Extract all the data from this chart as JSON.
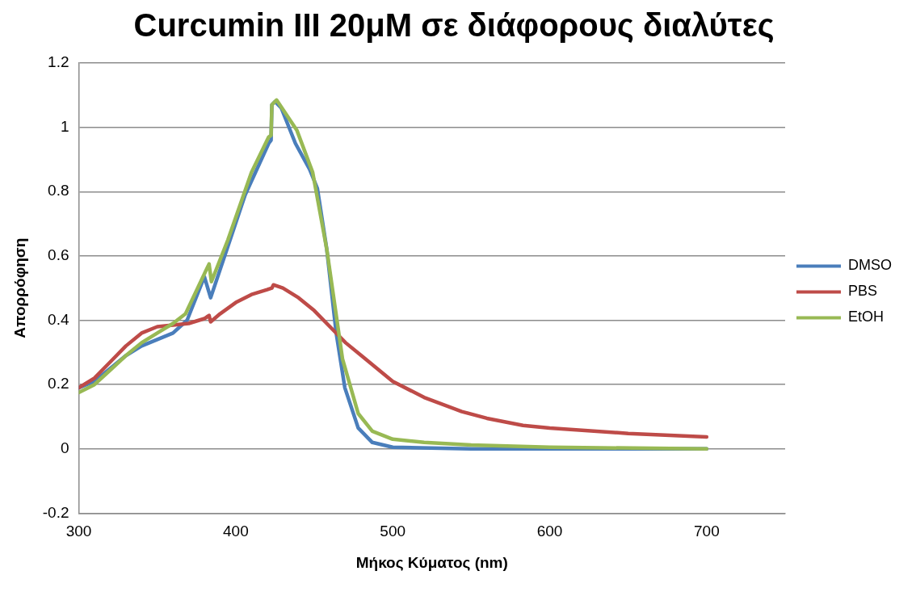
{
  "chart_data": {
    "type": "line",
    "title": "Curcumin III 20μM σε διάφορους διαλύτες",
    "xlabel": "Μήκος Κύματος (nm)",
    "ylabel": "Απορρόφηση",
    "xlim": [
      300,
      750
    ],
    "xticks": [
      300,
      400,
      500,
      600,
      700
    ],
    "ylim": [
      -0.2,
      1.2
    ],
    "yticks": [
      -0.2,
      0,
      0.2,
      0.4,
      0.6,
      0.8,
      1,
      1.2
    ],
    "grid": "y",
    "legend": "right",
    "marker": "none",
    "line_style": "solid",
    "series": [
      {
        "name": "DMSO",
        "color": "#4a7ebb",
        "x": [
          300,
          310,
          320,
          330,
          340,
          350,
          360,
          369,
          380,
          384,
          395,
          406,
          421,
          422.5,
          423,
          425,
          429,
          438,
          447,
          452,
          458,
          464,
          469.5,
          478,
          487,
          500,
          550,
          600,
          700
        ],
        "values": [
          0.19,
          0.21,
          0.25,
          0.29,
          0.32,
          0.34,
          0.36,
          0.4,
          0.535,
          0.47,
          0.63,
          0.79,
          0.95,
          0.96,
          1.07,
          1.08,
          1.06,
          0.95,
          0.87,
          0.81,
          0.62,
          0.36,
          0.19,
          0.065,
          0.02,
          0.005,
          0,
          0,
          0
        ]
      },
      {
        "name": "PBS",
        "color": "#be4b48",
        "x": [
          300,
          310,
          320,
          330,
          340,
          350,
          360,
          370,
          380,
          383,
          384,
          390,
          400,
          410,
          420,
          423,
          424,
          430,
          440,
          450,
          460,
          470,
          480,
          500,
          520,
          544,
          560,
          583,
          600,
          650,
          700
        ],
        "values": [
          0.19,
          0.22,
          0.27,
          0.32,
          0.36,
          0.38,
          0.385,
          0.39,
          0.405,
          0.415,
          0.395,
          0.42,
          0.455,
          0.48,
          0.495,
          0.5,
          0.51,
          0.5,
          0.47,
          0.43,
          0.38,
          0.33,
          0.29,
          0.21,
          0.16,
          0.116,
          0.095,
          0.073,
          0.065,
          0.048,
          0.037
        ]
      },
      {
        "name": "EtOH",
        "color": "#98b954",
        "x": [
          300,
          310,
          320,
          330,
          340,
          350,
          360,
          368,
          383,
          384.5,
          395,
          410,
          421,
          422.5,
          423,
          426,
          439,
          449,
          458,
          468,
          478,
          487,
          500,
          520,
          550,
          600,
          700
        ],
        "values": [
          0.175,
          0.2,
          0.245,
          0.29,
          0.33,
          0.36,
          0.39,
          0.42,
          0.575,
          0.52,
          0.65,
          0.86,
          0.97,
          0.975,
          1.07,
          1.085,
          0.99,
          0.86,
          0.62,
          0.28,
          0.11,
          0.055,
          0.03,
          0.02,
          0.012,
          0.005,
          0
        ]
      }
    ]
  }
}
